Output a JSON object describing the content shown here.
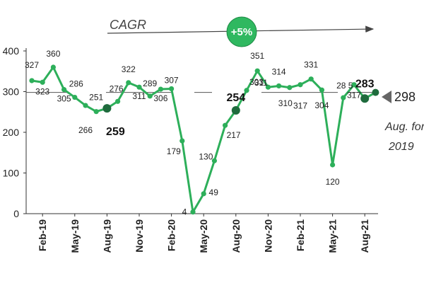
{
  "chart_data": {
    "type": "line",
    "title": "",
    "xlabel": "",
    "ylabel": "",
    "ylim": [
      0,
      400
    ],
    "yticks": [
      "0",
      "100",
      "200",
      "300",
      "400"
    ],
    "grid": false,
    "x_tick_labels": [
      "Feb-19",
      "May-19",
      "Aug-19",
      "Nov-19",
      "Feb-20",
      "May-20",
      "Aug-20",
      "Nov-20",
      "Feb-21",
      "May-21",
      "Aug-21"
    ],
    "x": [
      "Jan-19",
      "Feb-19",
      "Mar-19",
      "Apr-19",
      "May-19",
      "Jun-19",
      "Jul-19",
      "Aug-19",
      "Sep-19",
      "Oct-19",
      "Nov-19",
      "Dec-19",
      "Jan-20",
      "Feb-20",
      "Mar-20",
      "Apr-20",
      "May-20",
      "Jun-20",
      "Jul-20",
      "Aug-20",
      "Sep-20",
      "Oct-20",
      "Nov-20",
      "Dec-20",
      "Jan-21",
      "Feb-21",
      "Mar-21",
      "Apr-21",
      "May-21",
      "Jun-21",
      "Jul-21",
      "Aug-21",
      "Sep-21"
    ],
    "series": [
      {
        "values": [
          327,
          323,
          360,
          305,
          286,
          266,
          251,
          259,
          276,
          322,
          311,
          289,
          306,
          307,
          179,
          4,
          49,
          130,
          217,
          254,
          303,
          351,
          311,
          314,
          310,
          317,
          331,
          304,
          120,
          285,
          317,
          283,
          298
        ],
        "labels": [
          "327",
          "323",
          "360",
          "305",
          "286",
          "266",
          "251",
          "259",
          "276",
          "322",
          "311",
          "289",
          "306",
          "307",
          "179",
          "4",
          "49",
          "130",
          "217",
          "254",
          "303",
          "351",
          "311",
          "314",
          "310",
          "317",
          "331",
          "304",
          "120",
          "28 5",
          "317",
          "283",
          ""
        ],
        "color": "#2daf5a"
      }
    ],
    "average": {
      "value": "298",
      "caption_line1": "Aug. for",
      "caption_line2": "2019"
    },
    "cagr": {
      "label": "CAGR",
      "badge": "+5%"
    }
  },
  "colors": {
    "line": "#2daf5a",
    "marker_dark": "#1f6b3d",
    "badge_fill": "#2fb860",
    "avg_arrow": "#666666",
    "refline": "#555555",
    "axis": "#333333"
  }
}
